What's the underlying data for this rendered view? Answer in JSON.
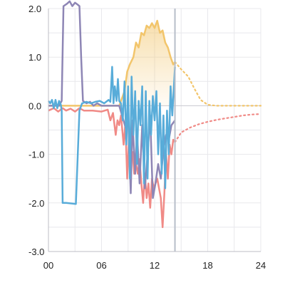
{
  "chart_data": {
    "type": "line",
    "title": "",
    "xlabel": "",
    "ylabel": "",
    "xlim": [
      0,
      24
    ],
    "ylim": [
      -3.0,
      2.0
    ],
    "x_ticks": [
      "00",
      "06",
      "12",
      "18",
      "24"
    ],
    "y_ticks": [
      "2.0",
      "1.0",
      "0.0",
      "-1.0",
      "-2.0",
      "-3.0"
    ],
    "grid": true,
    "legend": "none",
    "now_marker_x": 14.3,
    "colors": {
      "purple": "#8e86b5",
      "blue": "#58acd9",
      "yellow": "#f2c56b",
      "red": "#f08a86",
      "now": "#b7bec9"
    },
    "series": [
      {
        "color_key": "yellow",
        "style": "area",
        "points": [
          [
            0,
            0
          ],
          [
            8,
            0
          ],
          [
            8.6,
            0.3
          ],
          [
            8.9,
            0.7
          ],
          [
            9.2,
            0.85
          ],
          [
            9.6,
            1.0
          ],
          [
            9.9,
            1.3
          ],
          [
            10.2,
            1.2
          ],
          [
            10.5,
            1.5
          ],
          [
            10.8,
            1.45
          ],
          [
            11.1,
            1.65
          ],
          [
            11.4,
            1.6
          ],
          [
            11.7,
            1.7
          ],
          [
            12.0,
            1.6
          ],
          [
            12.3,
            1.75
          ],
          [
            12.6,
            1.5
          ],
          [
            12.9,
            1.55
          ],
          [
            13.2,
            1.3
          ],
          [
            13.5,
            1.2
          ],
          [
            13.8,
            1.0
          ],
          [
            14.1,
            0.85
          ],
          [
            14.3,
            0.9
          ]
        ]
      },
      {
        "color_key": "yellow",
        "style": "dotted",
        "points": [
          [
            14.3,
            0.9
          ],
          [
            15,
            0.75
          ],
          [
            15.8,
            0.6
          ],
          [
            16.5,
            0.35
          ],
          [
            17.2,
            0.12
          ],
          [
            18,
            0.02
          ],
          [
            19,
            0
          ],
          [
            24,
            0
          ]
        ]
      },
      {
        "color_key": "red",
        "style": "solid",
        "points": [
          [
            0,
            -0.1
          ],
          [
            0.6,
            -0.05
          ],
          [
            1.1,
            -0.12
          ],
          [
            1.6,
            -0.05
          ],
          [
            2.0,
            -0.1
          ],
          [
            2.5,
            -0.06
          ],
          [
            3.0,
            -0.12
          ],
          [
            3.5,
            -0.05
          ],
          [
            4,
            -0.1
          ],
          [
            5,
            -0.1
          ],
          [
            6,
            -0.12
          ],
          [
            6.7,
            -0.08
          ],
          [
            7.0,
            -0.3
          ],
          [
            7.3,
            -0.15
          ],
          [
            7.6,
            -0.6
          ],
          [
            7.8,
            -0.3
          ],
          [
            8.0,
            -0.4
          ],
          [
            8.2,
            -0.2
          ],
          [
            8.5,
            -0.8
          ],
          [
            8.7,
            -0.35
          ],
          [
            8.9,
            -1.5
          ],
          [
            9.1,
            -0.7
          ],
          [
            9.3,
            -1.2
          ],
          [
            9.5,
            -0.95
          ],
          [
            9.7,
            -1.4
          ],
          [
            9.9,
            -1.2
          ],
          [
            10.1,
            -1.4
          ],
          [
            10.3,
            -1.1
          ],
          [
            10.5,
            -1.6
          ],
          [
            10.7,
            -2.0
          ],
          [
            10.9,
            -1.4
          ],
          [
            11.1,
            -1.9
          ],
          [
            11.3,
            -1.6
          ],
          [
            11.5,
            -2.1
          ],
          [
            11.7,
            -1.5
          ],
          [
            11.9,
            -1.7
          ],
          [
            12.1,
            -1.6
          ],
          [
            12.3,
            -1.5
          ],
          [
            12.5,
            -1.7
          ],
          [
            12.7,
            -1.9
          ],
          [
            12.9,
            -2.5
          ],
          [
            13.1,
            -1.8
          ],
          [
            13.3,
            -1.0
          ],
          [
            13.5,
            -1.5
          ],
          [
            13.7,
            -0.8
          ],
          [
            13.9,
            -1.0
          ],
          [
            14.1,
            -0.7
          ],
          [
            14.3,
            -0.75
          ]
        ]
      },
      {
        "color_key": "red",
        "style": "dotted",
        "points": [
          [
            14.3,
            -0.75
          ],
          [
            15,
            -0.55
          ],
          [
            16,
            -0.45
          ],
          [
            17,
            -0.38
          ],
          [
            18,
            -0.33
          ],
          [
            19,
            -0.29
          ],
          [
            20,
            -0.26
          ],
          [
            21,
            -0.23
          ],
          [
            22,
            -0.2
          ],
          [
            23,
            -0.18
          ],
          [
            24,
            -0.17
          ]
        ]
      },
      {
        "color_key": "purple",
        "style": "solid",
        "points": [
          [
            0,
            0
          ],
          [
            1.2,
            0
          ],
          [
            1.5,
            0.1
          ],
          [
            1.7,
            2.05
          ],
          [
            2.1,
            2.1
          ],
          [
            2.4,
            2.15
          ],
          [
            2.7,
            2.05
          ],
          [
            3.0,
            2.12
          ],
          [
            3.3,
            2.08
          ],
          [
            3.5,
            2.05
          ],
          [
            3.7,
            1.0
          ],
          [
            3.9,
            0.1
          ],
          [
            4.3,
            0.05
          ],
          [
            4.7,
            0.08
          ],
          [
            5.1,
            0
          ],
          [
            5.5,
            0.05
          ],
          [
            6,
            0
          ],
          [
            8,
            0
          ],
          [
            8.8,
            -0.5
          ],
          [
            9.0,
            -0.2
          ],
          [
            9.3,
            -1.8
          ],
          [
            9.5,
            -0.3
          ],
          [
            9.8,
            -1.4
          ],
          [
            10.0,
            -0.5
          ],
          [
            10.3,
            -1.6
          ],
          [
            10.6,
            -0.4
          ],
          [
            10.9,
            -1.7
          ],
          [
            11.2,
            -1.0
          ],
          [
            11.5,
            -0.2
          ],
          [
            11.8,
            -1.9
          ],
          [
            12.1,
            -1.6
          ],
          [
            12.4,
            -1.2
          ],
          [
            12.7,
            -1.5
          ],
          [
            13.0,
            -0.9
          ],
          [
            13.3,
            -0.6
          ],
          [
            13.6,
            -0.7
          ],
          [
            13.9,
            -0.4
          ],
          [
            14.3,
            -0.3
          ]
        ]
      },
      {
        "color_key": "blue",
        "style": "solid",
        "points": [
          [
            0,
            0.1
          ],
          [
            0.2,
            0.05
          ],
          [
            0.4,
            0.12
          ],
          [
            0.6,
            -0.05
          ],
          [
            0.8,
            0.12
          ],
          [
            1.0,
            -0.05
          ],
          [
            1.2,
            0.1
          ],
          [
            1.4,
            0.02
          ],
          [
            1.5,
            -0.1
          ],
          [
            1.6,
            -2.0
          ],
          [
            2.0,
            -2.0
          ],
          [
            3.1,
            -2.02
          ],
          [
            3.5,
            -0.1
          ],
          [
            3.8,
            0.05
          ],
          [
            4.3,
            0.08
          ],
          [
            4.8,
            0.05
          ],
          [
            5.3,
            0.08
          ],
          [
            5.8,
            0.1
          ],
          [
            6.3,
            0.05
          ],
          [
            6.8,
            0.12
          ],
          [
            7.0,
            0.08
          ],
          [
            7.2,
            0.8
          ],
          [
            7.35,
            0.05
          ],
          [
            7.5,
            0.4
          ],
          [
            7.7,
            0.1
          ],
          [
            7.85,
            0.55
          ],
          [
            8.0,
            0.1
          ],
          [
            8.2,
            0.05
          ],
          [
            8.4,
            -0.3
          ],
          [
            8.6,
            0.5
          ],
          [
            8.8,
            -0.8
          ],
          [
            9.0,
            0.4
          ],
          [
            9.2,
            -1.5
          ],
          [
            9.4,
            0.6
          ],
          [
            9.6,
            -0.6
          ],
          [
            9.8,
            0.3
          ],
          [
            10.0,
            -1.2
          ],
          [
            10.2,
            0.1
          ],
          [
            10.4,
            -0.4
          ],
          [
            10.6,
            0.4
          ],
          [
            10.8,
            -1.6
          ],
          [
            11.0,
            0.3
          ],
          [
            11.2,
            -1.5
          ],
          [
            11.4,
            0.1
          ],
          [
            11.6,
            -0.6
          ],
          [
            11.8,
            0.2
          ],
          [
            12.0,
            -0.3
          ],
          [
            12.2,
            0.3
          ],
          [
            12.4,
            -1.0
          ],
          [
            12.6,
            0.05
          ],
          [
            12.8,
            -1.4
          ],
          [
            13.0,
            -0.2
          ],
          [
            13.2,
            -1.7
          ],
          [
            13.4,
            -0.1
          ],
          [
            13.6,
            -1.0
          ],
          [
            13.8,
            0.4
          ],
          [
            14.0,
            -0.2
          ],
          [
            14.3,
            0.8
          ]
        ]
      }
    ]
  }
}
